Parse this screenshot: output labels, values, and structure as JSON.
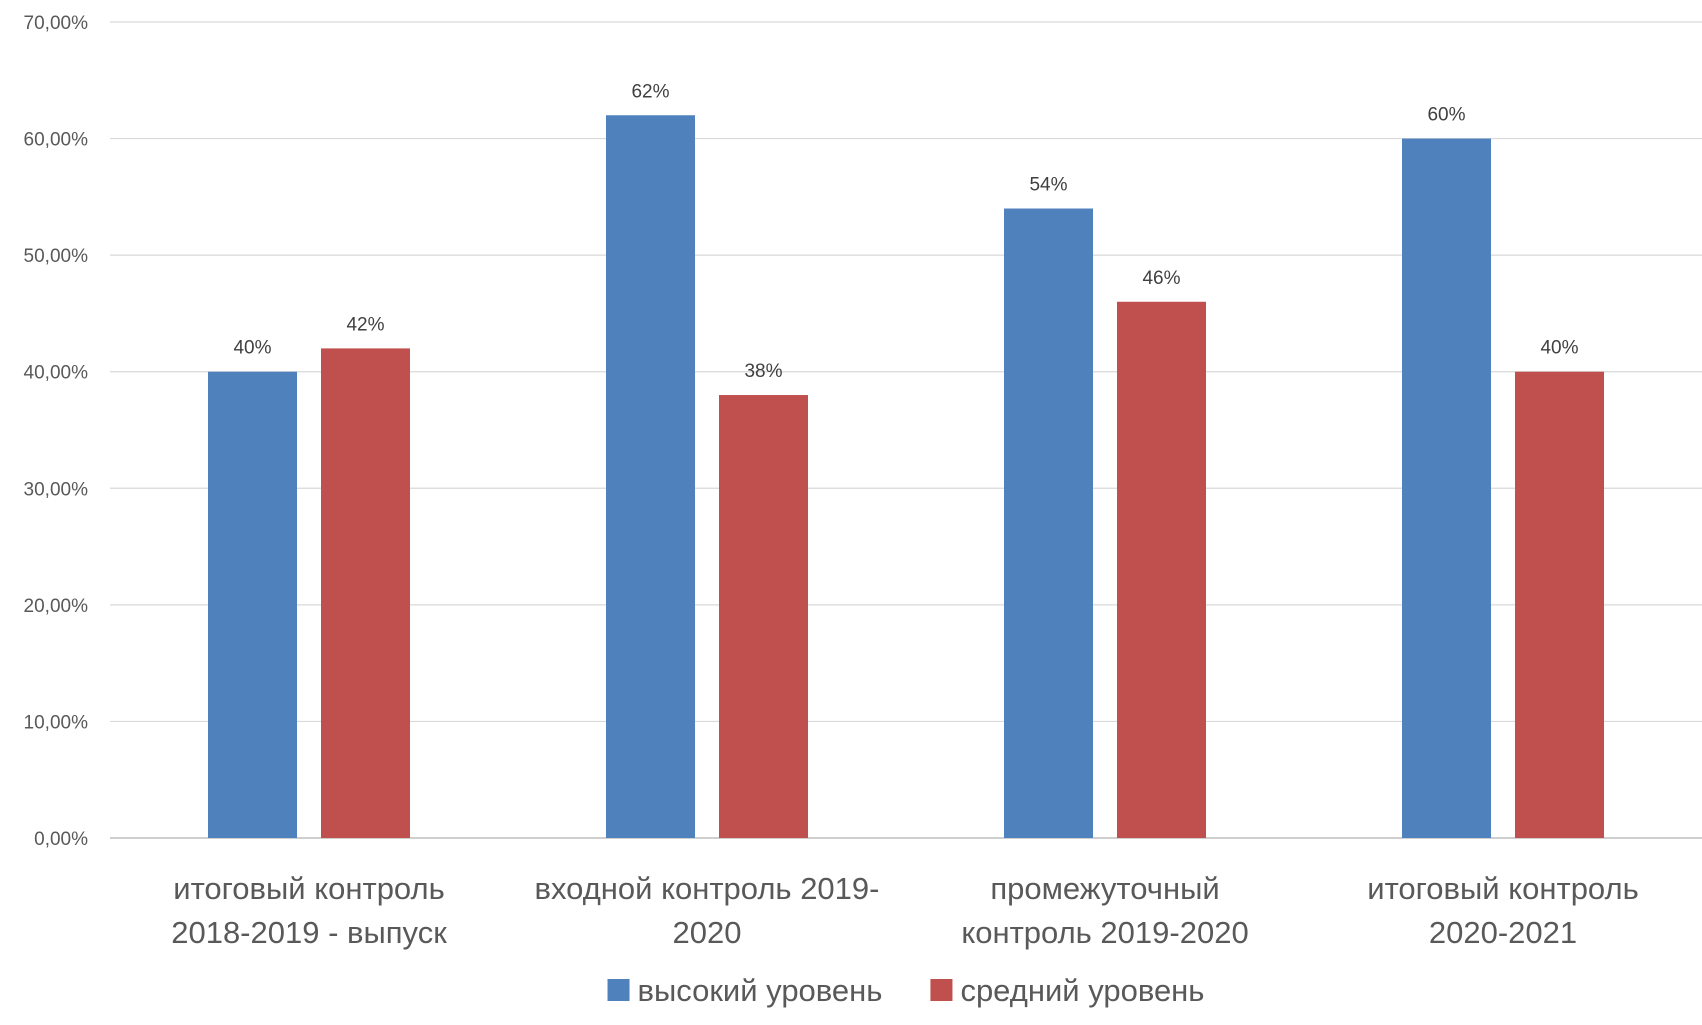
{
  "chart_data": {
    "type": "bar",
    "title": "",
    "xlabel": "",
    "ylabel": "",
    "ylim": [
      0,
      0.7
    ],
    "yticks": [
      0,
      0.1,
      0.2,
      0.3,
      0.4,
      0.5,
      0.6,
      0.7
    ],
    "ytick_labels": [
      "0,00%",
      "10,00%",
      "20,00%",
      "30,00%",
      "40,00%",
      "50,00%",
      "60,00%",
      "70,00%"
    ],
    "grid": true,
    "legend_position": "bottom",
    "categories": [
      [
        "итоговый контроль",
        "2018-2019 - выпуск"
      ],
      [
        "входной контроль 2019-",
        "2020"
      ],
      [
        "промежуточный",
        "контроль 2019-2020"
      ],
      [
        "итоговый контроль",
        "2020-2021"
      ]
    ],
    "series": [
      {
        "name": "высокий уровень",
        "color": "#4F81BD",
        "values": [
          0.4,
          0.62,
          0.54,
          0.6
        ],
        "labels": [
          "40%",
          "62%",
          "54%",
          "60%"
        ]
      },
      {
        "name": "средний уровень",
        "color": "#C0504D",
        "values": [
          0.42,
          0.38,
          0.46,
          0.4
        ],
        "labels": [
          "42%",
          "38%",
          "46%",
          "40%"
        ]
      }
    ]
  }
}
